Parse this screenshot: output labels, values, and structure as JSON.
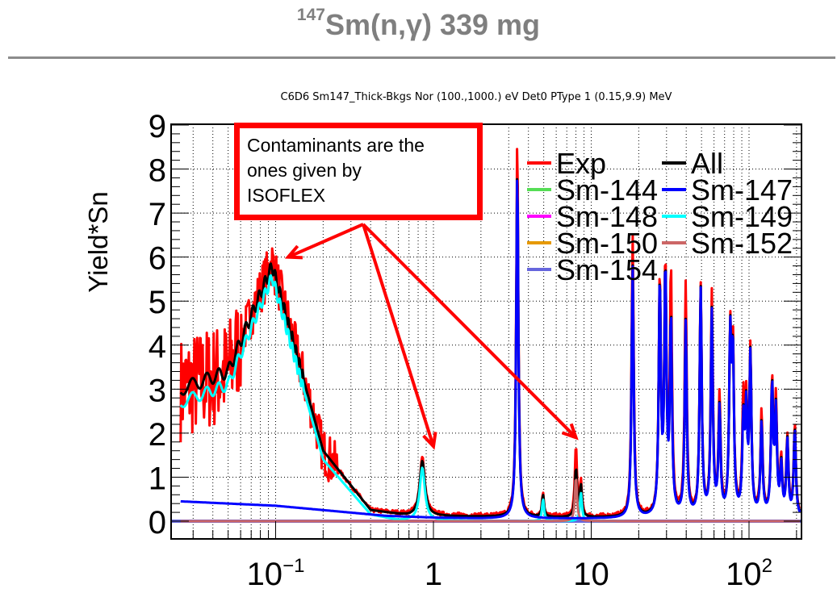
{
  "slide": {
    "title_sup": "147",
    "title_main": "Sm(n,γ) 339 mg"
  },
  "callout": {
    "lines": [
      "Contaminants are the",
      "ones given by",
      "ISOFLEX"
    ]
  },
  "chart_data": {
    "type": "line",
    "title": "C6D6 Sm147_Thick-Bkgs Nor (100.,1000.) eV Det0 PType 1 (0.15,9.9) MeV",
    "xlabel": "",
    "ylabel": "Yield*Sn",
    "xscale": "log",
    "xlim": [
      0.025,
      210
    ],
    "ylim": [
      0,
      9
    ],
    "yticks": [
      "0",
      "1",
      "2",
      "3",
      "4",
      "5",
      "6",
      "7",
      "8",
      "9"
    ],
    "xticks": [
      {
        "value": 0.1,
        "label": "10",
        "sup": "−1"
      },
      {
        "value": 1,
        "label": "1",
        "sup": ""
      },
      {
        "value": 10,
        "label": "10",
        "sup": ""
      },
      {
        "value": 100,
        "label": "10",
        "sup": "2"
      }
    ],
    "grid": true,
    "legend": {
      "placement": "top-right",
      "entries": [
        {
          "name": "Exp",
          "color": "#ff0000"
        },
        {
          "name": "All",
          "color": "#000000"
        },
        {
          "name": "Sm-144",
          "color": "#55dd55"
        },
        {
          "name": "Sm-147",
          "color": "#0000ff"
        },
        {
          "name": "Sm-148",
          "color": "#ff00ff"
        },
        {
          "name": "Sm-149",
          "color": "#00ffff"
        },
        {
          "name": "Sm-150",
          "color": "#e69900"
        },
        {
          "name": "Sm-152",
          "color": "#cc6666"
        },
        {
          "name": "Sm-154",
          "color": "#6666dd"
        }
      ]
    },
    "series": [
      {
        "name": "Exp",
        "color": "#ff0000",
        "noise": 0.55,
        "baseline": {
          "x": [
            0.025,
            0.05,
            0.095,
            0.2,
            0.4,
            0.7,
            2,
            5,
            200
          ],
          "y": [
            3.0,
            3.4,
            5.9,
            1.6,
            0.25,
            0.15,
            0.12,
            0.1,
            0.1
          ]
        }
      },
      {
        "name": "All",
        "color": "#000000",
        "baseline": {
          "x": [
            0.025,
            0.05,
            0.095,
            0.2,
            0.4,
            0.7,
            2,
            5,
            200
          ],
          "y": [
            3.0,
            3.4,
            5.8,
            1.6,
            0.25,
            0.12,
            0.1,
            0.08,
            0.08
          ]
        }
      },
      {
        "name": "Sm-149",
        "color": "#00ffff",
        "baseline": {
          "x": [
            0.025,
            0.05,
            0.095,
            0.2,
            0.4,
            0.6,
            2,
            200
          ],
          "y": [
            2.7,
            3.1,
            5.55,
            1.4,
            0.15,
            0.02,
            0.0,
            0.0
          ]
        }
      },
      {
        "name": "Sm-147",
        "color": "#0000ff",
        "baseline": {
          "x": [
            0.025,
            0.1,
            0.5,
            1.0,
            2.0,
            200
          ],
          "y": [
            0.45,
            0.35,
            0.12,
            0.08,
            0.06,
            0.05
          ]
        }
      }
    ],
    "peaks": [
      {
        "x": 0.85,
        "exp": 1.3,
        "all": 1.25,
        "isotope": "Sm-149",
        "iso_height": 1.2
      },
      {
        "x": 3.4,
        "exp": 8.6,
        "all": 7.9,
        "isotope": "Sm-147",
        "iso_height": 7.9
      },
      {
        "x": 4.95,
        "exp": 0.55,
        "all": 0.5,
        "isotope": "Sm-149",
        "iso_height": 0.5
      },
      {
        "x": 8.0,
        "exp": 1.6,
        "all": 1.1,
        "isotope": "Sm-152",
        "iso_height": 1.0
      },
      {
        "x": 8.6,
        "exp": 0.75,
        "all": 0.7,
        "isotope": "Sm-149",
        "iso_height": 0.65
      },
      {
        "x": 18.3,
        "exp": 6.4,
        "all": 5.7,
        "isotope": "Sm-147",
        "iso_height": 5.7
      },
      {
        "x": 27.2,
        "exp": 5.3,
        "all": 5.25,
        "isotope": "Sm-147",
        "iso_height": 5.25
      },
      {
        "x": 29.5,
        "exp": 5.6,
        "all": 5.5,
        "isotope": "Sm-147",
        "iso_height": 5.5
      },
      {
        "x": 32.0,
        "exp": 5.5,
        "all": 4.4,
        "isotope": "Sm-147",
        "iso_height": 4.4
      },
      {
        "x": 39.7,
        "exp": 5.2,
        "all": 4.4,
        "isotope": "Sm-147",
        "iso_height": 4.4
      },
      {
        "x": 49.4,
        "exp": 5.2,
        "all": 5.15,
        "isotope": "Sm-147",
        "iso_height": 5.15
      },
      {
        "x": 58.1,
        "exp": 5.0,
        "all": 4.6,
        "isotope": "Sm-147",
        "iso_height": 4.6
      },
      {
        "x": 65.0,
        "exp": 2.7,
        "all": 2.4,
        "isotope": "Sm-147",
        "iso_height": 2.4
      },
      {
        "x": 76.0,
        "exp": 3.9,
        "all": 3.85,
        "isotope": "Sm-147",
        "iso_height": 3.85
      },
      {
        "x": 79.0,
        "exp": 3.7,
        "all": 3.5,
        "isotope": "Sm-147",
        "iso_height": 3.5
      },
      {
        "x": 92.0,
        "exp": 2.5,
        "all": 2.0,
        "isotope": "Sm-147",
        "iso_height": 2.0
      },
      {
        "x": 96.0,
        "exp": 2.3,
        "all": 2.2,
        "isotope": "Sm-147",
        "iso_height": 2.2
      },
      {
        "x": 102.0,
        "exp": 3.6,
        "all": 3.55,
        "isotope": "Sm-147",
        "iso_height": 3.55
      },
      {
        "x": 120.0,
        "exp": 2.3,
        "all": 2.1,
        "isotope": "Sm-147",
        "iso_height": 2.1
      },
      {
        "x": 140.0,
        "exp": 3.0,
        "all": 2.9,
        "isotope": "Sm-147",
        "iso_height": 2.9
      },
      {
        "x": 148.0,
        "exp": 2.5,
        "all": 2.3,
        "isotope": "Sm-147",
        "iso_height": 2.3
      },
      {
        "x": 160.0,
        "exp": 1.2,
        "all": 1.1,
        "isotope": "Sm-147",
        "iso_height": 1.1
      },
      {
        "x": 175.0,
        "exp": 1.8,
        "all": 1.7,
        "isotope": "Sm-147",
        "iso_height": 1.7
      },
      {
        "x": 195.0,
        "exp": 2.1,
        "all": 2.0,
        "isotope": "Sm-147",
        "iso_height": 2.0
      }
    ],
    "annotation": {
      "text": "Contaminants are the ones given by ISOFLEX",
      "arrow_targets": [
        {
          "x": 0.12,
          "y": 6.0
        },
        {
          "x": 1.0,
          "y": 1.7
        },
        {
          "x": 8.0,
          "y": 1.9
        }
      ]
    }
  }
}
